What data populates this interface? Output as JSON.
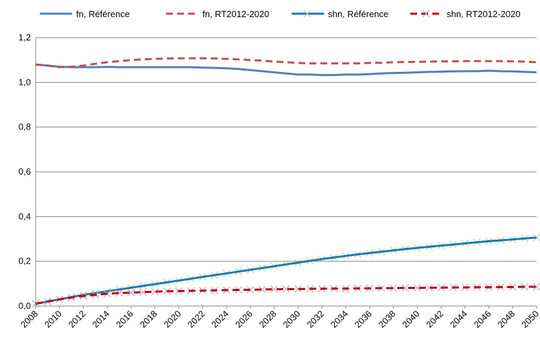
{
  "chart_data": {
    "type": "line",
    "title": "",
    "xlabel": "",
    "ylabel": "",
    "ylim": [
      0,
      1.2
    ],
    "yticks": [
      "0,0",
      "0,2",
      "0,4",
      "0,6",
      "0,8",
      "1,0",
      "1,2"
    ],
    "ytick_values": [
      0,
      0.2,
      0.4,
      0.6,
      0.8,
      1.0,
      1.2
    ],
    "x": [
      2008,
      2009,
      2010,
      2011,
      2012,
      2013,
      2014,
      2015,
      2016,
      2017,
      2018,
      2019,
      2020,
      2021,
      2022,
      2023,
      2024,
      2025,
      2026,
      2027,
      2028,
      2029,
      2030,
      2031,
      2032,
      2033,
      2034,
      2035,
      2036,
      2037,
      2038,
      2039,
      2040,
      2041,
      2042,
      2043,
      2044,
      2045,
      2046,
      2047,
      2048,
      2049,
      2050
    ],
    "xticks": [
      "2008",
      "2010",
      "2012",
      "2014",
      "2016",
      "2018",
      "2020",
      "2022",
      "2024",
      "2026",
      "2028",
      "2030",
      "2032",
      "2034",
      "2036",
      "2038",
      "2040",
      "2042",
      "2044",
      "2046",
      "2048",
      "2050"
    ],
    "grid": "horizontal",
    "legend": "top",
    "series": [
      {
        "name": "fn, Référence",
        "color": "#4F81BD",
        "style": "solid",
        "marker": "none",
        "values": [
          1.08,
          1.075,
          1.07,
          1.068,
          1.068,
          1.068,
          1.069,
          1.068,
          1.068,
          1.068,
          1.068,
          1.068,
          1.068,
          1.068,
          1.066,
          1.065,
          1.063,
          1.06,
          1.055,
          1.05,
          1.045,
          1.04,
          1.035,
          1.035,
          1.033,
          1.033,
          1.035,
          1.035,
          1.037,
          1.04,
          1.042,
          1.043,
          1.045,
          1.047,
          1.048,
          1.049,
          1.05,
          1.05,
          1.052,
          1.05,
          1.049,
          1.047,
          1.045
        ]
      },
      {
        "name": "fn, RT2012-2020",
        "color": "#C0504D",
        "style": "dashed",
        "marker": "none",
        "values": [
          1.08,
          1.075,
          1.068,
          1.07,
          1.075,
          1.083,
          1.09,
          1.095,
          1.1,
          1.103,
          1.105,
          1.107,
          1.108,
          1.108,
          1.108,
          1.107,
          1.105,
          1.103,
          1.1,
          1.097,
          1.093,
          1.09,
          1.087,
          1.085,
          1.085,
          1.085,
          1.085,
          1.085,
          1.087,
          1.088,
          1.09,
          1.091,
          1.092,
          1.093,
          1.094,
          1.094,
          1.095,
          1.095,
          1.095,
          1.095,
          1.094,
          1.093,
          1.09
        ]
      },
      {
        "name": "shn, Référence",
        "color": "#1F77B4",
        "style": "solid",
        "marker": "x",
        "marker_color": "#B5D99C",
        "values": [
          0.01,
          0.02,
          0.03,
          0.04,
          0.05,
          0.058,
          0.066,
          0.074,
          0.082,
          0.09,
          0.098,
          0.106,
          0.114,
          0.122,
          0.13,
          0.138,
          0.146,
          0.154,
          0.162,
          0.17,
          0.178,
          0.186,
          0.194,
          0.202,
          0.21,
          0.217,
          0.224,
          0.231,
          0.237,
          0.243,
          0.249,
          0.255,
          0.26,
          0.265,
          0.27,
          0.275,
          0.28,
          0.285,
          0.29,
          0.294,
          0.298,
          0.302,
          0.306
        ]
      },
      {
        "name": "shn, RT2012-2020",
        "color": "#C00000",
        "style": "dashed",
        "marker": "x",
        "marker_color": "#B4A7D6",
        "values": [
          0.01,
          0.02,
          0.03,
          0.038,
          0.045,
          0.05,
          0.055,
          0.058,
          0.06,
          0.062,
          0.064,
          0.066,
          0.067,
          0.068,
          0.069,
          0.07,
          0.071,
          0.072,
          0.073,
          0.074,
          0.075,
          0.076,
          0.076,
          0.077,
          0.077,
          0.078,
          0.078,
          0.079,
          0.079,
          0.08,
          0.08,
          0.081,
          0.081,
          0.082,
          0.082,
          0.083,
          0.083,
          0.084,
          0.084,
          0.085,
          0.085,
          0.086,
          0.086
        ]
      }
    ]
  }
}
